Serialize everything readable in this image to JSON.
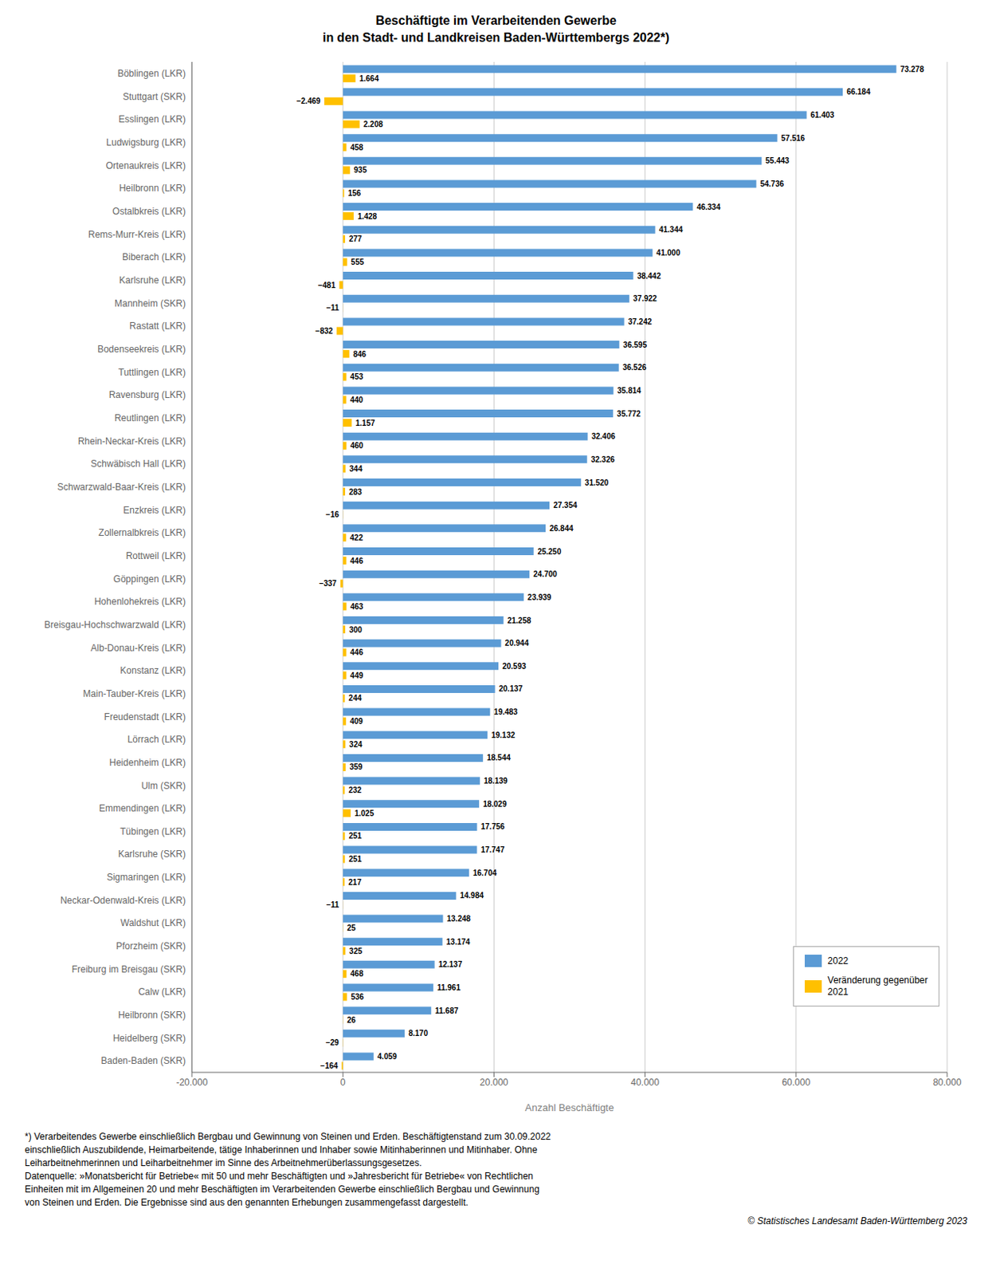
{
  "chart_data": {
    "type": "bar",
    "orientation": "horizontal",
    "title": "Beschäftigte im Verarbeitenden Gewerbe",
    "subtitle": "in den Stadt- und Landkreisen Baden-Württembergs 2022*)",
    "xlabel": "Anzahl Beschäftigte",
    "categories": [
      "Böblingen (LKR)",
      "Stuttgart (SKR)",
      "Esslingen (LKR)",
      "Ludwigsburg (LKR)",
      "Ortenaukreis (LKR)",
      "Heilbronn (LKR)",
      "Ostalbkreis (LKR)",
      "Rems-Murr-Kreis (LKR)",
      "Biberach (LKR)",
      "Karlsruhe (LKR)",
      "Mannheim (SKR)",
      "Rastatt (LKR)",
      "Bodenseekreis (LKR)",
      "Tuttlingen (LKR)",
      "Ravensburg (LKR)",
      "Reutlingen (LKR)",
      "Rhein-Neckar-Kreis (LKR)",
      "Schwäbisch Hall (LKR)",
      "Schwarzwald-Baar-Kreis (LKR)",
      "Enzkreis (LKR)",
      "Zollernalbkreis (LKR)",
      "Rottweil (LKR)",
      "Göppingen (LKR)",
      "Hohenlohekreis (LKR)",
      "Breisgau-Hochschwarzwald (LKR)",
      "Alb-Donau-Kreis (LKR)",
      "Konstanz (LKR)",
      "Main-Tauber-Kreis (LKR)",
      "Freudenstadt (LKR)",
      "Lörrach (LKR)",
      "Heidenheim (LKR)",
      "Ulm (SKR)",
      "Emmendingen (LKR)",
      "Tübingen (LKR)",
      "Karlsruhe (SKR)",
      "Sigmaringen (LKR)",
      "Neckar-Odenwald-Kreis (LKR)",
      "Waldshut (LKR)",
      "Pforzheim (SKR)",
      "Freiburg im Breisgau (SKR)",
      "Calw (LKR)",
      "Heilbronn (SKR)",
      "Heidelberg (SKR)",
      "Baden-Baden (SKR)"
    ],
    "series": [
      {
        "name": "2022",
        "color": "#5b9bd5",
        "values": [
          73278,
          66184,
          61403,
          57516,
          55443,
          54736,
          46334,
          41344,
          41000,
          38442,
          37922,
          37242,
          36595,
          36526,
          35814,
          35772,
          32406,
          32326,
          31520,
          27354,
          26844,
          25250,
          24700,
          23939,
          21258,
          20944,
          20593,
          20137,
          19483,
          19132,
          18544,
          18139,
          18029,
          17756,
          17747,
          16704,
          14984,
          13248,
          13174,
          12137,
          11961,
          11687,
          8170,
          4059
        ],
        "value_labels": [
          "73.278",
          "66.184",
          "61.403",
          "57.516",
          "55.443",
          "54.736",
          "46.334",
          "41.344",
          "41.000",
          "38.442",
          "37.922",
          "37.242",
          "36.595",
          "36.526",
          "35.814",
          "35.772",
          "32.406",
          "32.326",
          "31.520",
          "27.354",
          "26.844",
          "25.250",
          "24.700",
          "23.939",
          "21.258",
          "20.944",
          "20.593",
          "20.137",
          "19.483",
          "19.132",
          "18.544",
          "18.139",
          "18.029",
          "17.756",
          "17.747",
          "16.704",
          "14.984",
          "13.248",
          "13.174",
          "12.137",
          "11.961",
          "11.687",
          "8.170",
          "4.059"
        ]
      },
      {
        "name": "Veränderung gegenüber\n2021",
        "color": "#ffc000",
        "values": [
          1664,
          -2469,
          2208,
          458,
          935,
          156,
          1428,
          277,
          555,
          -481,
          -11,
          -832,
          846,
          453,
          440,
          1157,
          460,
          344,
          283,
          -16,
          422,
          446,
          -337,
          463,
          300,
          446,
          449,
          244,
          409,
          324,
          359,
          232,
          1025,
          251,
          251,
          217,
          -11,
          25,
          325,
          468,
          536,
          26,
          -29,
          -164
        ],
        "value_labels": [
          "1.664",
          "−2.469",
          "2.208",
          "458",
          "935",
          "156",
          "1.428",
          "277",
          "555",
          "−481",
          "−11",
          "−832",
          "846",
          "453",
          "440",
          "1.157",
          "460",
          "344",
          "283",
          "−16",
          "422",
          "446",
          "−337",
          "463",
          "300",
          "446",
          "449",
          "244",
          "409",
          "324",
          "359",
          "232",
          "1.025",
          "251",
          "251",
          "217",
          "−11",
          "25",
          "325",
          "468",
          "536",
          "26",
          "−29",
          "−164"
        ]
      }
    ],
    "xlim": [
      -20000,
      80000
    ],
    "xticks": [
      {
        "value": -20000,
        "label": "-20.000"
      },
      0,
      {
        "value": 20000,
        "label": "20.000"
      },
      {
        "value": 40000,
        "label": "40.000"
      },
      {
        "value": 60000,
        "label": "60.000"
      },
      {
        "value": 80000,
        "label": "80.000"
      }
    ],
    "grid": true,
    "legend": "lower right",
    "data_labels": true,
    "annotations": [
      "*) Verarbeitendes Gewerbe einschließlich Bergbau und Gewinnung von Steinen und Erden. Beschäftigtenstand zum 30.09.2022",
      "einschließlich Auszubildende, Heimarbeitende, tätige Inhaberinnen und Inhaber sowie Mitinhaberinnen und Mitinhaber. Ohne",
      "Leiharbeitnehmerinnen und Leiharbeitnehmer im Sinne des Arbeitnehmerüberlassungsgesetzes.",
      "Datenquelle: »Monatsbericht für Betriebe« mit 50 und mehr Beschäftigten und »Jahresbericht für Betriebe« von Rechtlichen",
      "Einheiten mit im Allgemeinen 20 und mehr Beschäftigten im Verarbeitenden Gewerbe einschließlich Bergbau und Gewinnung",
      "von Steinen und Erden. Die Ergebnisse sind aus den genannten Erhebungen zusammengefasst dargestellt.",
      "© Statistisches Landesamt Baden-Württemberg 2023"
    ]
  }
}
